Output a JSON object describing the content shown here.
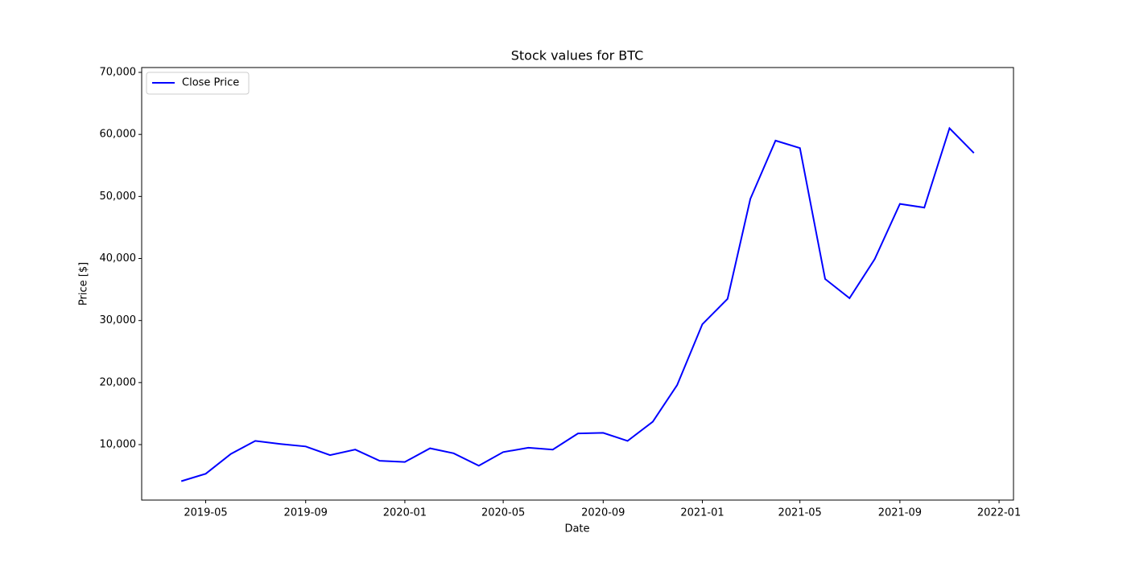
{
  "chart_data": {
    "type": "line",
    "title": "Stock values for BTC",
    "x_label": "Date",
    "y_label": "Price [$]",
    "x": [
      "2019-04",
      "2019-05",
      "2019-06",
      "2019-07",
      "2019-08",
      "2019-09",
      "2019-10",
      "2019-11",
      "2019-12",
      "2020-01",
      "2020-02",
      "2020-03",
      "2020-04",
      "2020-05",
      "2020-06",
      "2020-07",
      "2020-08",
      "2020-09",
      "2020-10",
      "2020-11",
      "2020-12",
      "2021-01",
      "2021-02",
      "2021-03",
      "2021-04",
      "2021-05",
      "2021-06",
      "2021-07",
      "2021-08",
      "2021-09",
      "2021-10",
      "2021-11",
      "2021-12"
    ],
    "series": [
      {
        "name": "Close Price",
        "color": "#0000ff",
        "values": [
          4100,
          5300,
          8500,
          10600,
          10100,
          9700,
          8300,
          9200,
          7400,
          7200,
          9400,
          8600,
          6600,
          8800,
          9500,
          9200,
          11800,
          11900,
          10600,
          13700,
          19600,
          29400,
          33500,
          49600,
          59000,
          57800,
          36700,
          33600,
          39900,
          48800,
          48200,
          61000,
          57000
        ]
      }
    ],
    "xticks": [
      "2019-05",
      "2019-09",
      "2020-01",
      "2020-05",
      "2020-09",
      "2021-01",
      "2021-05",
      "2021-09",
      "2022-01"
    ],
    "ylim": [
      1060,
      70780
    ],
    "yticks": [
      {
        "value": 10000,
        "label": "10,000"
      },
      {
        "value": 20000,
        "label": "20,000"
      },
      {
        "value": 30000,
        "label": "30,000"
      },
      {
        "value": 40000,
        "label": "40,000"
      },
      {
        "value": 50000,
        "label": "50,000"
      },
      {
        "value": 60000,
        "label": "60,000"
      },
      {
        "value": 70000,
        "label": "70,000"
      }
    ],
    "legend": "upper left"
  }
}
